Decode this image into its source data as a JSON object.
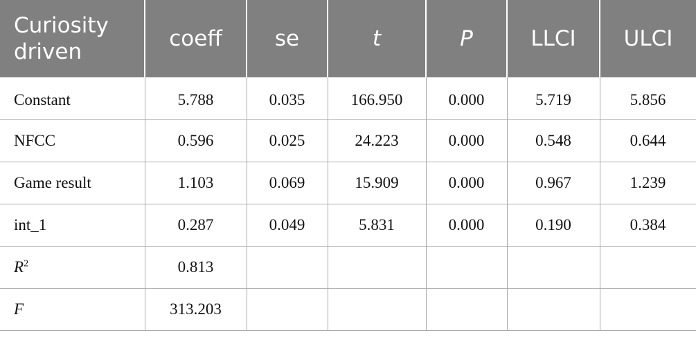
{
  "table": {
    "headers": {
      "col1_line1": "Curiosity",
      "col1_line2": "driven",
      "coeff": "coeff",
      "se": "se",
      "t": "t",
      "p": "P",
      "llci": "LLCI",
      "ulci": "ULCI"
    },
    "rows": [
      {
        "label": "Constant",
        "coeff": "5.788",
        "se": "0.035",
        "t": "166.950",
        "p": "0.000",
        "llci": "5.719",
        "ulci": "5.856"
      },
      {
        "label": "NFCC",
        "coeff": "0.596",
        "se": "0.025",
        "t": "24.223",
        "p": "0.000",
        "llci": "0.548",
        "ulci": "0.644"
      },
      {
        "label": "Game result",
        "coeff": "1.103",
        "se": "0.069",
        "t": "15.909",
        "p": "0.000",
        "llci": "0.967",
        "ulci": "1.239"
      },
      {
        "label": "int_1",
        "coeff": "0.287",
        "se": "0.049",
        "t": "5.831",
        "p": "0.000",
        "llci": "0.190",
        "ulci": "0.384"
      },
      {
        "label": "R",
        "label_sup": "2",
        "coeff": "0.813"
      },
      {
        "label": "F",
        "coeff": "313.203"
      }
    ]
  }
}
